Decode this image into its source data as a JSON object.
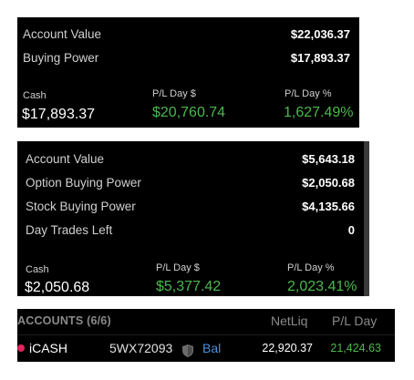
{
  "summary1": {
    "account_value_label": "Account Value",
    "account_value": "$22,036.37",
    "buying_power_label": "Buying Power",
    "buying_power": "$17,893.37",
    "cash_label": "Cash",
    "cash": "$17,893.37",
    "pl_day_label": "P/L Day $",
    "pl_day": "$20,760.74",
    "pl_day_pct_label": "P/L Day %",
    "pl_day_pct": "1,627.49%"
  },
  "summary2": {
    "account_value_label": "Account Value",
    "account_value": "$5,643.18",
    "option_bp_label": "Option Buying Power",
    "option_bp": "$2,050.68",
    "stock_bp_label": "Stock Buying Power",
    "stock_bp": "$4,135.66",
    "day_trades_label": "Day Trades Left",
    "day_trades": "0",
    "cash_label": "Cash",
    "cash": "$2,050.68",
    "pl_day_label": "P/L Day $",
    "pl_day": "$5,377.42",
    "pl_day_pct_label": "P/L Day %",
    "pl_day_pct": "2,023.41%"
  },
  "accounts": {
    "title": "ACCOUNTS (6/6)",
    "col_netliq": "NetLiq",
    "col_pl_day": "P/L Day",
    "rows": [
      {
        "name": "iCASH",
        "id": "5WX72093",
        "link": "Bal",
        "netliq": "22,920.37",
        "pl_day": "21,424.63"
      }
    ]
  },
  "colors": {
    "panel_bg": "#000000",
    "positive": "#4cb84c",
    "link": "#4a90d9",
    "status_dot": "#e0245e"
  },
  "icons": {
    "account_type": "shield-icon",
    "status": "status-dot-icon"
  }
}
